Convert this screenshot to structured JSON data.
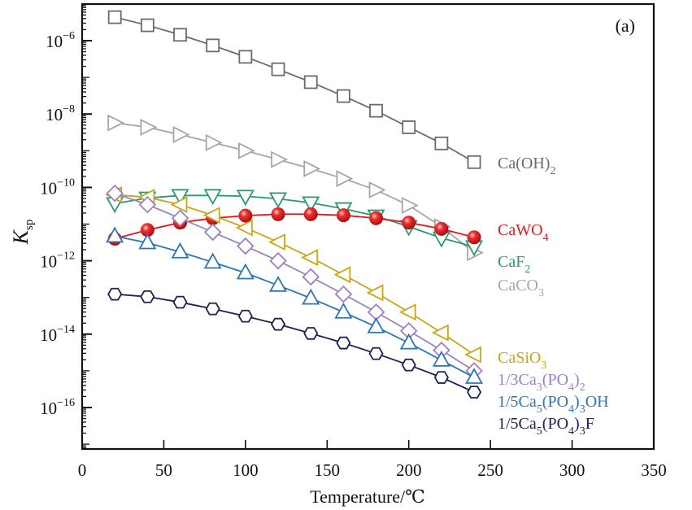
{
  "chart_data": {
    "type": "line",
    "panel_label": "(a)",
    "xlabel": "Temperature/℃",
    "ylabel": "K",
    "ylabel_sub": "sp",
    "xlim": [
      0,
      350
    ],
    "ylim_log10": [
      -17.1,
      -5.0
    ],
    "y_scale": "log",
    "grid": false,
    "x_ticks": [
      0,
      50,
      100,
      150,
      200,
      250,
      300,
      350
    ],
    "x_tick_labels": [
      "0",
      "50",
      "100",
      "150",
      "200",
      "250",
      "300",
      "350"
    ],
    "y_ticks_log10": [
      -6,
      -8,
      -10,
      -12,
      -14,
      -16
    ],
    "y_tick_labels": [
      {
        "base": "10",
        "exp": "−6"
      },
      {
        "base": "10",
        "exp": "−8"
      },
      {
        "base": "10",
        "exp": "−10"
      },
      {
        "base": "10",
        "exp": "−12"
      },
      {
        "base": "10",
        "exp": "−14"
      },
      {
        "base": "10",
        "exp": "−16"
      }
    ],
    "x": [
      20,
      40,
      60,
      80,
      100,
      120,
      140,
      160,
      180,
      200,
      220,
      240
    ],
    "series": [
      {
        "name": "Ca(OH)2",
        "label_parts": [
          [
            "Ca(OH)",
            ""
          ],
          [
            "2",
            "sub"
          ]
        ],
        "color": "#6b6b6b",
        "marker": "square",
        "filled": false,
        "log10_values": [
          -5.36,
          -5.58,
          -5.84,
          -6.13,
          -6.44,
          -6.78,
          -7.13,
          -7.51,
          -7.91,
          -8.36,
          -8.8,
          -9.31
        ]
      },
      {
        "name": "CaCO3",
        "label_parts": [
          [
            "CaCO",
            ""
          ],
          [
            "3",
            "sub"
          ]
        ],
        "color": "#a6a6a6",
        "marker": "triangle-right",
        "filled": false,
        "log10_values": [
          -8.24,
          -8.36,
          -8.56,
          -8.78,
          -9.0,
          -9.24,
          -9.49,
          -9.76,
          -10.07,
          -10.49,
          -11.07,
          -11.78
        ]
      },
      {
        "name": "CaF2",
        "label_parts": [
          [
            "CaF",
            ""
          ],
          [
            "2",
            "sub"
          ]
        ],
        "color": "#2a9a6e",
        "marker": "triangle-down",
        "filled": false,
        "log10_values": [
          -10.44,
          -10.29,
          -10.22,
          -10.22,
          -10.24,
          -10.31,
          -10.42,
          -10.58,
          -10.78,
          -11.07,
          -11.38,
          -11.62
        ]
      },
      {
        "name": "CaWO4",
        "label_parts": [
          [
            "CaWO",
            ""
          ],
          [
            "4",
            "sub"
          ]
        ],
        "color": "#e3161b",
        "marker": "sphere",
        "filled": true,
        "log10_values": [
          -11.4,
          -11.16,
          -10.96,
          -10.84,
          -10.77,
          -10.73,
          -10.73,
          -10.76,
          -10.84,
          -10.96,
          -11.13,
          -11.36
        ]
      },
      {
        "name": "CaSiO3",
        "label_parts": [
          [
            "CaSiO",
            ""
          ],
          [
            "3",
            "sub"
          ]
        ],
        "color": "#c9a617",
        "marker": "triangle-left",
        "filled": false,
        "log10_values": [
          -10.2,
          -10.27,
          -10.47,
          -10.76,
          -11.1,
          -11.49,
          -11.91,
          -12.38,
          -12.87,
          -13.4,
          -13.96,
          -14.56
        ]
      },
      {
        "name": "1/3Ca3(PO4)2",
        "label_parts": [
          [
            "1/3Ca",
            ""
          ],
          [
            "3",
            "sub"
          ],
          [
            "(PO",
            ""
          ],
          [
            "4",
            "sub"
          ],
          [
            ")",
            ""
          ],
          [
            "2",
            "sub"
          ]
        ],
        "color": "#9a82bf",
        "marker": "diamond",
        "filled": false,
        "log10_values": [
          -10.16,
          -10.47,
          -10.84,
          -11.22,
          -11.6,
          -12.0,
          -12.44,
          -12.91,
          -13.4,
          -13.91,
          -14.44,
          -15.0
        ]
      },
      {
        "name": "1/5Ca5(PO4)3OH",
        "label_parts": [
          [
            "1/5Ca",
            ""
          ],
          [
            "5",
            "sub"
          ],
          [
            "(PO",
            ""
          ],
          [
            "4",
            "sub"
          ],
          [
            ")",
            ""
          ],
          [
            "3",
            "sub"
          ],
          [
            "OH",
            ""
          ]
        ],
        "color": "#2e75b6",
        "marker": "triangle-up",
        "filled": false,
        "log10_values": [
          -11.33,
          -11.51,
          -11.76,
          -12.04,
          -12.33,
          -12.67,
          -13.02,
          -13.4,
          -13.8,
          -14.24,
          -14.71,
          -15.18
        ]
      },
      {
        "name": "1/5Ca5(PO4)3F",
        "label_parts": [
          [
            "1/5Ca",
            ""
          ],
          [
            "5",
            "sub"
          ],
          [
            "(PO",
            ""
          ],
          [
            "4",
            "sub"
          ],
          [
            ")",
            ""
          ],
          [
            "3",
            "sub"
          ],
          [
            "F",
            ""
          ]
        ],
        "color": "#1b2157",
        "marker": "hexagon",
        "filled": false,
        "log10_values": [
          -12.91,
          -12.98,
          -13.13,
          -13.31,
          -13.51,
          -13.73,
          -13.98,
          -14.24,
          -14.53,
          -14.84,
          -15.18,
          -15.58
        ]
      }
    ]
  }
}
